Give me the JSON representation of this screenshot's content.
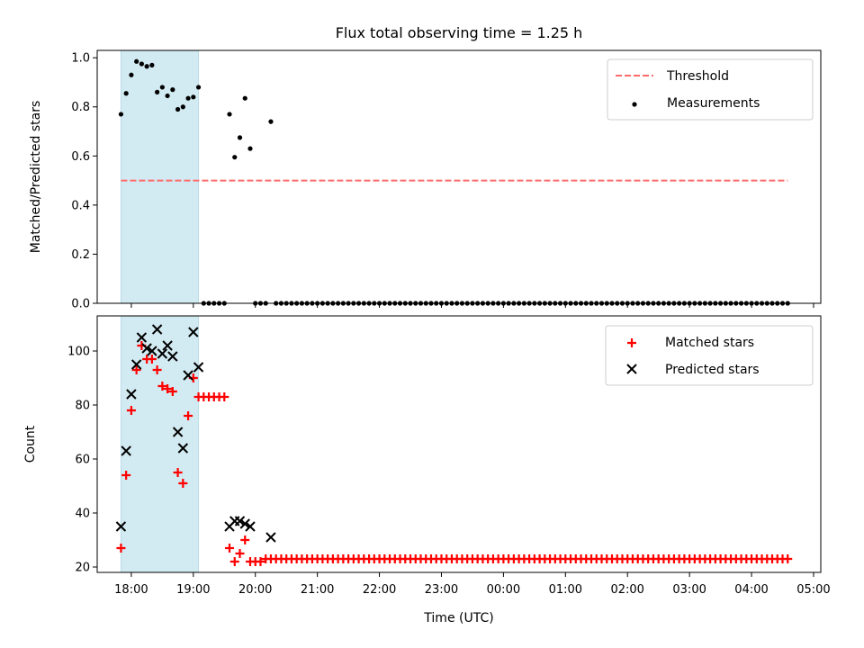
{
  "chart_data": {
    "title": "Flux total observing time = 1.25 h",
    "xlabel": "Time (UTC)",
    "x_ticks": [
      "18:00",
      "19:00",
      "20:00",
      "21:00",
      "22:00",
      "23:00",
      "00:00",
      "01:00",
      "02:00",
      "03:00",
      "04:00",
      "05:00"
    ],
    "x_range": [
      "17:27",
      "05:07"
    ],
    "shaded_span": [
      "17:50",
      "19:05"
    ],
    "colors": {
      "shade": "#add8e6",
      "threshold": "#ff6b6b",
      "matched": "#ff0000",
      "predicted": "#000000",
      "points": "#000000"
    },
    "panels": [
      {
        "type": "scatter",
        "ylabel": "Matched/Predicted stars",
        "ylim": [
          0,
          1.03
        ],
        "y_ticks": [
          "0.0",
          "0.2",
          "0.4",
          "0.6",
          "0.8",
          "1.0"
        ],
        "legend": {
          "placement": "top-right",
          "entries": [
            "Threshold",
            "Measurements"
          ]
        },
        "threshold": {
          "name": "Threshold",
          "value": 0.5,
          "x_start": "17:50",
          "x_end": "04:35"
        },
        "measurements": {
          "name": "Measurements",
          "x": [
            "17:50",
            "17:55",
            "18:00",
            "18:05",
            "18:10",
            "18:15",
            "18:20",
            "18:25",
            "18:30",
            "18:35",
            "18:40",
            "18:45",
            "18:50",
            "18:55",
            "19:00",
            "19:05",
            "19:10",
            "19:15",
            "19:20",
            "19:25",
            "19:30",
            "19:35",
            "19:40",
            "19:45",
            "19:50",
            "19:55",
            "20:00",
            "20:05",
            "20:10",
            "20:15",
            "20:20",
            "20:25",
            "20:30",
            "20:35",
            "20:40",
            "20:45",
            "20:50",
            "20:55",
            "21:00",
            "21:05",
            "21:10",
            "21:15",
            "21:20",
            "21:25",
            "21:30",
            "21:35",
            "21:40",
            "21:45",
            "21:50",
            "21:55",
            "22:00",
            "22:05",
            "22:10",
            "22:15",
            "22:20",
            "22:25",
            "22:30",
            "22:35",
            "22:40",
            "22:45",
            "22:50",
            "22:55",
            "23:00",
            "23:05",
            "23:10",
            "23:15",
            "23:20",
            "23:25",
            "23:30",
            "23:35",
            "23:40",
            "23:45",
            "23:50",
            "23:55",
            "00:00",
            "00:05",
            "00:10",
            "00:15",
            "00:20",
            "00:25",
            "00:30",
            "00:35",
            "00:40",
            "00:45",
            "00:50",
            "00:55",
            "01:00",
            "01:05",
            "01:10",
            "01:15",
            "01:20",
            "01:25",
            "01:30",
            "01:35",
            "01:40",
            "01:45",
            "01:50",
            "01:55",
            "02:00",
            "02:05",
            "02:10",
            "02:15",
            "02:20",
            "02:25",
            "02:30",
            "02:35",
            "02:40",
            "02:45",
            "02:50",
            "02:55",
            "03:00",
            "03:05",
            "03:10",
            "03:15",
            "03:20",
            "03:25",
            "03:30",
            "03:35",
            "03:40",
            "03:45",
            "03:50",
            "03:55",
            "04:00",
            "04:05",
            "04:10",
            "04:15",
            "04:20",
            "04:25",
            "04:30",
            "04:35"
          ],
          "y": [
            0.77,
            0.855,
            0.93,
            0.985,
            0.975,
            0.965,
            0.97,
            0.86,
            0.88,
            0.845,
            0.87,
            0.79,
            0.8,
            0.835,
            0.84,
            0.88,
            0,
            0,
            0,
            0,
            0,
            0.77,
            0.595,
            0.675,
            0.835,
            0.63,
            0,
            0,
            0,
            0.74,
            0,
            0,
            0,
            0,
            0,
            0,
            0,
            0,
            0,
            0,
            0,
            0,
            0,
            0,
            0,
            0,
            0,
            0,
            0,
            0,
            0,
            0,
            0,
            0,
            0,
            0,
            0,
            0,
            0,
            0,
            0,
            0,
            0,
            0,
            0,
            0,
            0,
            0,
            0,
            0,
            0,
            0,
            0,
            0,
            0,
            0,
            0,
            0,
            0,
            0,
            0,
            0,
            0,
            0,
            0,
            0,
            0,
            0,
            0,
            0,
            0,
            0,
            0,
            0,
            0,
            0,
            0,
            0,
            0,
            0,
            0,
            0,
            0,
            0,
            0,
            0,
            0,
            0,
            0,
            0,
            0,
            0,
            0,
            0,
            0,
            0,
            0,
            0,
            0,
            0,
            0,
            0,
            0,
            0,
            0,
            0,
            0,
            0,
            0,
            0
          ]
        }
      },
      {
        "type": "scatter",
        "ylabel": "Count",
        "ylim": [
          18,
          113
        ],
        "y_ticks": [
          "20",
          "40",
          "60",
          "80",
          "100"
        ],
        "legend": {
          "placement": "top-right",
          "entries": [
            "Matched stars",
            "Predicted stars"
          ]
        },
        "series": [
          {
            "name": "Matched stars",
            "marker": "+",
            "x": [
              "17:50",
              "17:55",
              "18:00",
              "18:05",
              "18:10",
              "18:15",
              "18:20",
              "18:25",
              "18:30",
              "18:35",
              "18:40",
              "18:45",
              "18:50",
              "18:55",
              "19:00",
              "19:05",
              "19:10",
              "19:15",
              "19:20",
              "19:25",
              "19:30",
              "19:35",
              "19:40",
              "19:45",
              "19:50",
              "19:55",
              "20:00",
              "20:05",
              "20:10",
              "20:15",
              "20:20",
              "20:25",
              "20:30",
              "20:35",
              "20:40",
              "20:45",
              "20:50",
              "20:55",
              "21:00",
              "21:05",
              "21:10",
              "21:15",
              "21:20",
              "21:25",
              "21:30",
              "21:35",
              "21:40",
              "21:45",
              "21:50",
              "21:55",
              "22:00",
              "22:05",
              "22:10",
              "22:15",
              "22:20",
              "22:25",
              "22:30",
              "22:35",
              "22:40",
              "22:45",
              "22:50",
              "22:55",
              "23:00",
              "23:05",
              "23:10",
              "23:15",
              "23:20",
              "23:25",
              "23:30",
              "23:35",
              "23:40",
              "23:45",
              "23:50",
              "23:55",
              "00:00",
              "00:05",
              "00:10",
              "00:15",
              "00:20",
              "00:25",
              "00:30",
              "00:35",
              "00:40",
              "00:45",
              "00:50",
              "00:55",
              "01:00",
              "01:05",
              "01:10",
              "01:15",
              "01:20",
              "01:25",
              "01:30",
              "01:35",
              "01:40",
              "01:45",
              "01:50",
              "01:55",
              "02:00",
              "02:05",
              "02:10",
              "02:15",
              "02:20",
              "02:25",
              "02:30",
              "02:35",
              "02:40",
              "02:45",
              "02:50",
              "02:55",
              "03:00",
              "03:05",
              "03:10",
              "03:15",
              "03:20",
              "03:25",
              "03:30",
              "03:35",
              "03:40",
              "03:45",
              "03:50",
              "03:55",
              "04:00",
              "04:05",
              "04:10",
              "04:15",
              "04:20",
              "04:25",
              "04:30",
              "04:35"
            ],
            "y": [
              27,
              54,
              78,
              93,
              102,
              97,
              97,
              93,
              87,
              86,
              85,
              55,
              51,
              76,
              90,
              83,
              83,
              83,
              83,
              83,
              83,
              27,
              22,
              25,
              30,
              22,
              22,
              22,
              23,
              23,
              23,
              23,
              23,
              23,
              23,
              23,
              23,
              23,
              23,
              23,
              23,
              23,
              23,
              23,
              23,
              23,
              23,
              23,
              23,
              23,
              23,
              23,
              23,
              23,
              23,
              23,
              23,
              23,
              23,
              23,
              23,
              23,
              23,
              23,
              23,
              23,
              23,
              23,
              23,
              23,
              23,
              23,
              23,
              23,
              23,
              23,
              23,
              23,
              23,
              23,
              23,
              23,
              23,
              23,
              23,
              23,
              23,
              23,
              23,
              23,
              23,
              23,
              23,
              23,
              23,
              23,
              23,
              23,
              23,
              23,
              23,
              23,
              23,
              23,
              23,
              23,
              23,
              23,
              23,
              23,
              23,
              23,
              23,
              23,
              23,
              23,
              23,
              23,
              23,
              23,
              23,
              23,
              23,
              23,
              23,
              23,
              23,
              23,
              23,
              23
            ]
          },
          {
            "name": "Predicted stars",
            "marker": "x",
            "x": [
              "17:50",
              "17:55",
              "18:00",
              "18:05",
              "18:10",
              "18:15",
              "18:20",
              "18:25",
              "18:30",
              "18:35",
              "18:40",
              "18:45",
              "18:50",
              "18:55",
              "19:00",
              "19:05",
              "19:35",
              "19:40",
              "19:45",
              "19:50",
              "19:55",
              "20:15"
            ],
            "y": [
              35,
              63,
              84,
              95,
              105,
              101,
              100,
              108,
              99,
              102,
              98,
              70,
              64,
              91,
              107,
              94,
              35,
              37,
              37,
              36,
              35,
              31
            ]
          }
        ]
      }
    ]
  }
}
